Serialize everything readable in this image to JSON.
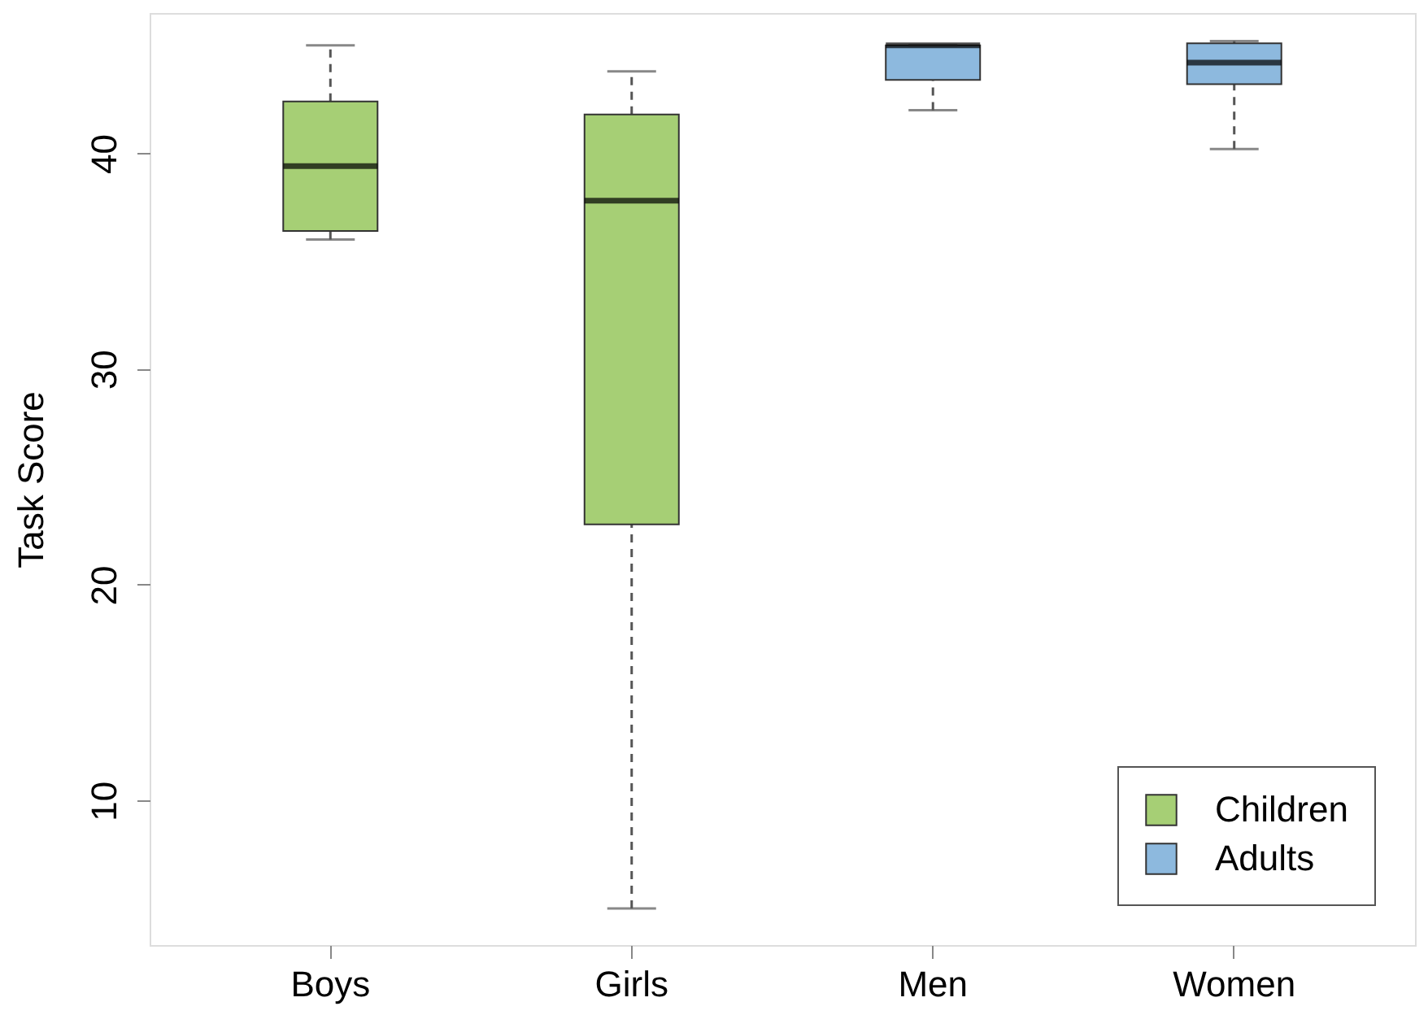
{
  "chart_data": {
    "type": "box",
    "ylabel": "Task Score",
    "categories": [
      "Boys",
      "Girls",
      "Men",
      "Women"
    ],
    "series": [
      {
        "name": "Children",
        "color": "#a6cf75",
        "boxes": [
          {
            "low": 36,
            "q1": 36.4,
            "median": 39.4,
            "q3": 42.4,
            "high": 45
          },
          {
            "low": 5,
            "q1": 22.8,
            "median": 37.8,
            "q3": 41.8,
            "high": 43.8
          },
          null,
          null
        ]
      },
      {
        "name": "Adults",
        "color": "#8db9de",
        "boxes": [
          null,
          null,
          {
            "low": 42,
            "q1": 43.4,
            "median": 45,
            "q3": 45,
            "high": 45
          },
          {
            "low": 40.2,
            "q1": 43.2,
            "median": 44.2,
            "q3": 45.1,
            "high": 45.2
          }
        ]
      }
    ],
    "ylim": [
      3.3,
      46.5
    ],
    "yticks": [
      10,
      20,
      30,
      40
    ],
    "grid": false,
    "legend": "bottom right"
  }
}
